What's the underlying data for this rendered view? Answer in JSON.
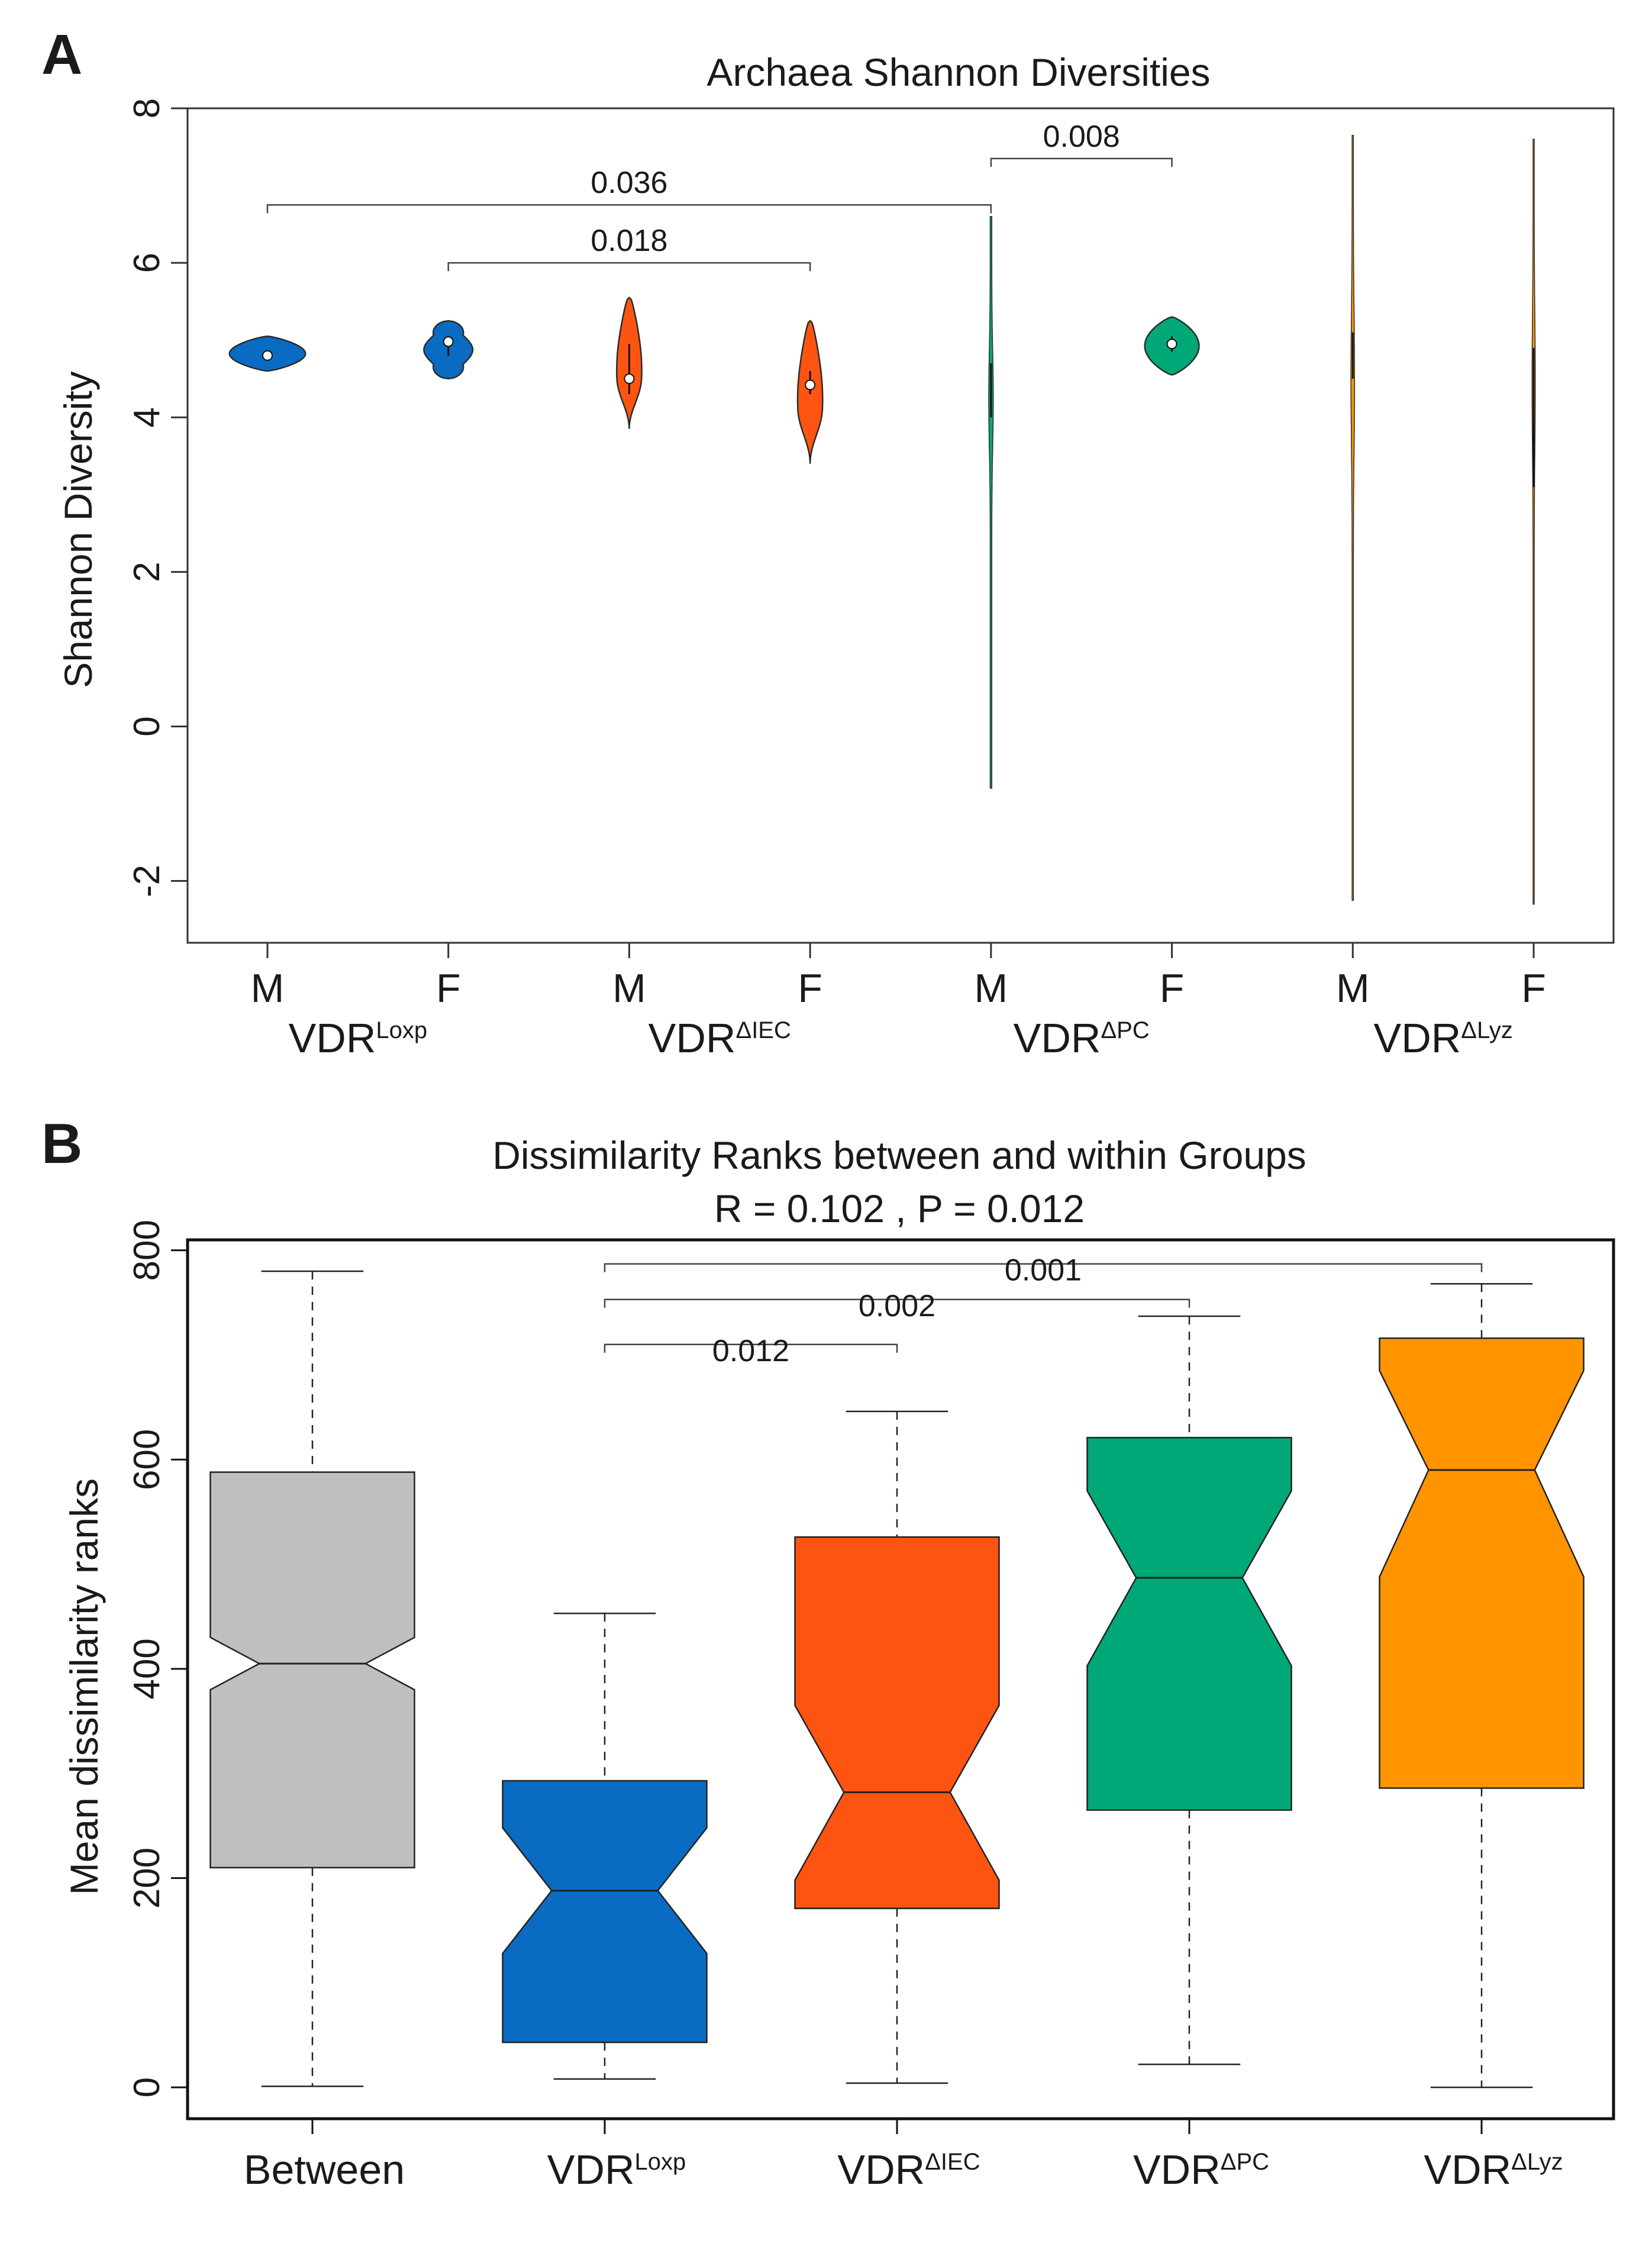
{
  "panels": [
    {
      "letter": "A",
      "chart_data": {
        "type": "violin",
        "title": "Archaea Shannon Diversities",
        "xlabel": "",
        "ylabel": "Shannon Diversity",
        "ylim": [
          -2.8,
          8.0
        ],
        "yticks": [
          "-2",
          "0",
          "2",
          "4",
          "6",
          "8"
        ],
        "categories": [
          "M",
          "F",
          "M",
          "F",
          "M",
          "F",
          "M",
          "F"
        ],
        "groups": [
          {
            "main": "VDR",
            "sup": "Loxp",
            "members": [
              0,
              1
            ]
          },
          {
            "main": "VDR",
            "sup": "ΔIEC",
            "members": [
              2,
              3
            ]
          },
          {
            "main": "VDR",
            "sup": "ΔPC",
            "members": [
              4,
              5
            ]
          },
          {
            "main": "VDR",
            "sup": "ΔLyz",
            "members": [
              6,
              7
            ]
          }
        ],
        "series": [
          {
            "color": "#0a6bc2",
            "min": 4.6,
            "max": 5.05,
            "q1": 4.75,
            "median": 4.8,
            "q3": 4.85,
            "shape": "ellipse",
            "maxwidth": 0.42
          },
          {
            "color": "#0a6bc2",
            "min": 4.5,
            "max": 5.25,
            "q1": 4.8,
            "median": 4.98,
            "q3": 5.05,
            "shape": "bimodal",
            "maxwidth": 0.27
          },
          {
            "color": "#fe5412",
            "min": 3.85,
            "max": 5.55,
            "q1": 4.3,
            "median": 4.5,
            "q3": 4.95,
            "shape": "teardrop",
            "maxwidth": 0.14
          },
          {
            "color": "#fe5412",
            "min": 3.4,
            "max": 5.25,
            "q1": 4.3,
            "median": 4.42,
            "q3": 4.6,
            "shape": "teardrop",
            "maxwidth": 0.14
          },
          {
            "color": "#00a878",
            "min": -0.8,
            "max": 6.6,
            "q1": 4.0,
            "median": 4.5,
            "q3": 4.7,
            "shape": "needle",
            "maxwidth": 0.025
          },
          {
            "color": "#00a878",
            "min": 4.55,
            "max": 5.3,
            "q1": 4.85,
            "median": 4.95,
            "q3": 5.05,
            "shape": "ellipse",
            "maxwidth": 0.3
          },
          {
            "color": "#ff9400",
            "min": -2.25,
            "max": 7.65,
            "q1": 4.5,
            "median": 4.85,
            "q3": 5.1,
            "shape": "needle",
            "maxwidth": 0.02
          },
          {
            "color": "#ff9400",
            "min": -2.3,
            "max": 7.6,
            "q1": 3.1,
            "median": 4.0,
            "q3": 4.9,
            "shape": "needle",
            "maxwidth": 0.018
          }
        ],
        "comparisons": [
          {
            "from": 0,
            "to": 4,
            "label": "0.036",
            "y": 6.75
          },
          {
            "from": 1,
            "to": 3,
            "label": "0.018",
            "y": 6.0
          },
          {
            "from": 4,
            "to": 5,
            "label": "0.008",
            "y": 7.35
          }
        ]
      }
    },
    {
      "letter": "B",
      "chart_data": {
        "type": "boxplot",
        "title": "Dissimilarity Ranks between and within Groups",
        "subtitle": "R =  0.102 ,  P =  0.012",
        "xlabel": "",
        "ylabel": "Mean dissimilarity ranks",
        "ylim": [
          -30,
          810
        ],
        "yticks": [
          "0",
          "200",
          "400",
          "600",
          "800"
        ],
        "categories": [
          {
            "main": "Between",
            "sup": ""
          },
          {
            "main": "VDR",
            "sup": "Loxp"
          },
          {
            "main": "VDR",
            "sup": "ΔIEC"
          },
          {
            "main": "VDR",
            "sup": "ΔPC"
          },
          {
            "main": "VDR",
            "sup": "ΔLyz"
          }
        ],
        "series": [
          {
            "color": "#c0bfbf",
            "min": 1,
            "q1": 210,
            "median": 405,
            "q3": 588,
            "max": 780,
            "notch_lo": 380,
            "notch_hi": 430
          },
          {
            "color": "#0a6bc2",
            "min": 8,
            "q1": 43,
            "median": 188,
            "q3": 293,
            "max": 453,
            "notch_lo": 128,
            "notch_hi": 248
          },
          {
            "color": "#fe5412",
            "min": 4,
            "q1": 171,
            "median": 282,
            "q3": 526,
            "max": 646,
            "notch_lo": 198,
            "notch_hi": 365
          },
          {
            "color": "#00a878",
            "min": 22,
            "q1": 265,
            "median": 487,
            "q3": 621,
            "max": 737,
            "notch_lo": 403,
            "notch_hi": 570
          },
          {
            "color": "#ff9400",
            "min": 0,
            "q1": 286,
            "median": 590,
            "q3": 716,
            "max": 768,
            "notch_lo": 488,
            "notch_hi": 685
          }
        ],
        "comparisons": [
          {
            "from": 1,
            "to": 4,
            "label": "0.001",
            "y": 787
          },
          {
            "from": 1,
            "to": 3,
            "label": "0.002",
            "y": 753
          },
          {
            "from": 1,
            "to": 2,
            "label": "0.012",
            "y": 710
          }
        ]
      }
    }
  ]
}
